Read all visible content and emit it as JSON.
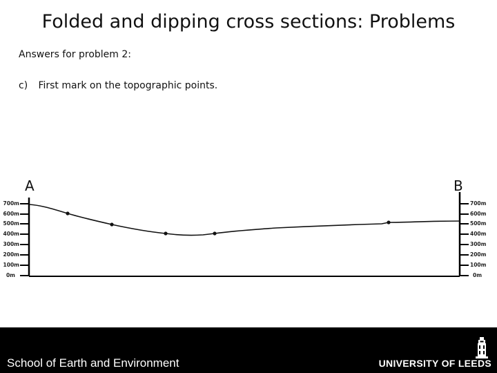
{
  "slide": {
    "title": "Folded and dipping cross sections: Problems",
    "subheading": "Answers for problem 2:",
    "step": {
      "number": "c)",
      "text": "First mark on the topographic points."
    }
  },
  "section": {
    "label_left": "A",
    "label_right": "B",
    "elevation_labels": [
      "700m",
      "600m",
      "500m",
      "400m",
      "300m",
      "200m",
      "100m",
      "0m"
    ],
    "line_color": "#000000"
  },
  "footer": {
    "school": "School of Earth and Environment",
    "university": "UNIVERSITY OF LEEDS",
    "logo_icon": "parkinson-tower-icon"
  }
}
